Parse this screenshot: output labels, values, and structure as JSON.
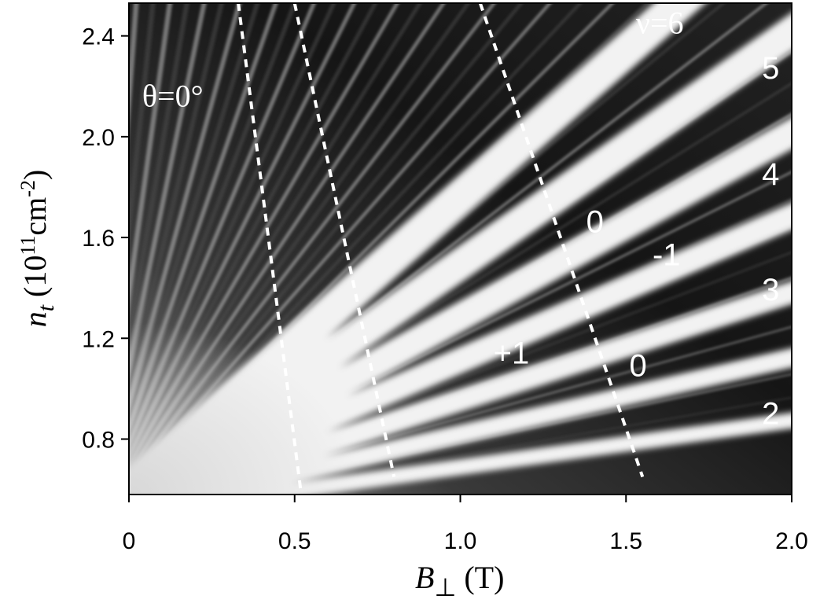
{
  "chart_data": {
    "type": "heatmap",
    "title": "",
    "xlabel": {
      "symbol": "B",
      "subscript": "⊥",
      "unit": "(T)"
    },
    "ylabel": {
      "symbol": "n",
      "subscript": "t",
      "unit_prefix": "(10",
      "unit_exp": "11",
      "unit_mid": "cm",
      "unit_exp2": "-2",
      "unit_suffix": ")"
    },
    "xlim": [
      0,
      2.0
    ],
    "ylim": [
      0.58,
      2.53
    ],
    "x_ticks": [
      {
        "value": 0,
        "label": "0"
      },
      {
        "value": 0.5,
        "label": "0.5"
      },
      {
        "value": 1.0,
        "label": "1.0"
      },
      {
        "value": 1.5,
        "label": "1.5"
      },
      {
        "value": 2.0,
        "label": "2.0"
      }
    ],
    "y_ticks": [
      {
        "value": 0.8,
        "label": "0.8"
      },
      {
        "value": 1.2,
        "label": "1.2"
      },
      {
        "value": 1.6,
        "label": "1.6"
      },
      {
        "value": 2.0,
        "label": "2.0"
      },
      {
        "value": 2.4,
        "label": "2.4"
      }
    ],
    "colormap": [
      "#000000",
      "#ffffff"
    ],
    "dashed_lines": [
      {
        "x": [
          0.33,
          0.52
        ],
        "y": [
          2.53,
          0.58
        ]
      },
      {
        "x": [
          0.5,
          0.8
        ],
        "y": [
          2.53,
          0.65
        ]
      },
      {
        "x": [
          1.06,
          1.55
        ],
        "y": [
          2.53,
          0.65
        ]
      }
    ],
    "annotations": [
      {
        "text": "θ=0°",
        "x": 0.04,
        "y": 2.12,
        "style": "serif"
      },
      {
        "text": "ν=6",
        "x": 1.53,
        "y": 2.41,
        "style": "serif"
      },
      {
        "text": "5",
        "x": 1.91,
        "y": 2.23,
        "style": "sans"
      },
      {
        "text": "4",
        "x": 1.91,
        "y": 1.81,
        "style": "sans"
      },
      {
        "text": "3",
        "x": 1.91,
        "y": 1.35,
        "style": "sans"
      },
      {
        "text": "2",
        "x": 1.91,
        "y": 0.86,
        "style": "sans"
      },
      {
        "text": "0",
        "x": 1.38,
        "y": 1.62,
        "style": "sans"
      },
      {
        "text": "-1",
        "x": 1.58,
        "y": 1.49,
        "style": "sans"
      },
      {
        "text": "+1",
        "x": 1.1,
        "y": 1.1,
        "style": "sans"
      },
      {
        "text": "0",
        "x": 1.51,
        "y": 1.05,
        "style": "sans"
      }
    ],
    "grid": false
  }
}
